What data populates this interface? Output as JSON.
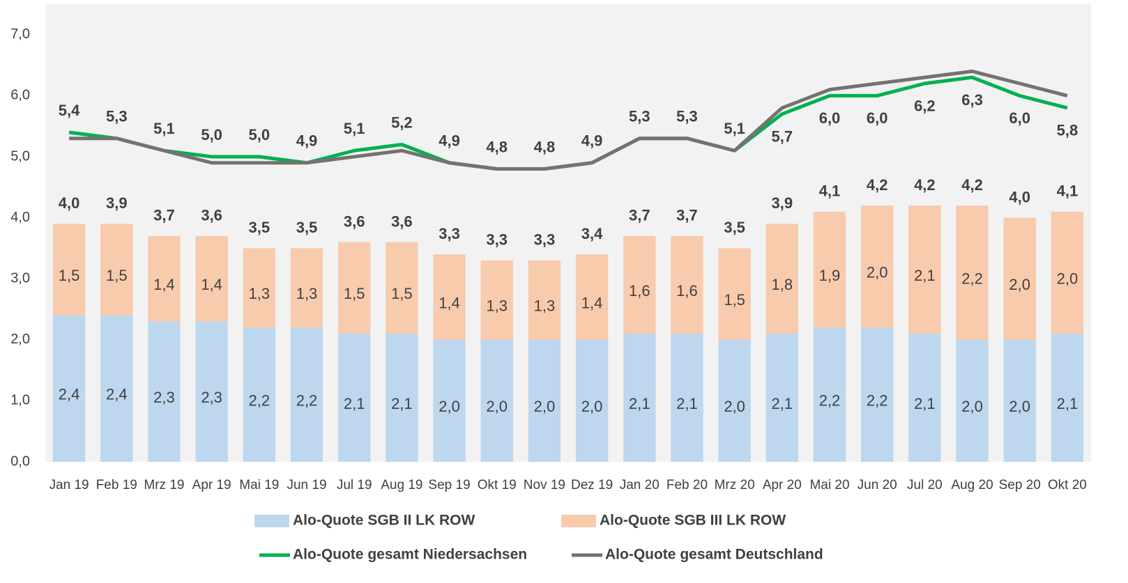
{
  "chart_data": {
    "type": "bar",
    "stacked": true,
    "categories": [
      "Jan 19",
      "Feb 19",
      "Mrz 19",
      "Apr 19",
      "Mai 19",
      "Jun 19",
      "Jul 19",
      "Aug 19",
      "Sep 19",
      "Okt 19",
      "Nov 19",
      "Dez 19",
      "Jan 20",
      "Feb 20",
      "Mrz 20",
      "Apr 20",
      "Mai 20",
      "Jun 20",
      "Jul 20",
      "Aug 20",
      "Sep 20",
      "Okt 20"
    ],
    "series": [
      {
        "name": "Alo-Quote SGB II LK ROW",
        "type": "bar",
        "color": "#bdd7ee",
        "values": [
          2.4,
          2.4,
          2.3,
          2.3,
          2.2,
          2.2,
          2.1,
          2.1,
          2.0,
          2.0,
          2.0,
          2.0,
          2.1,
          2.1,
          2.0,
          2.1,
          2.2,
          2.2,
          2.1,
          2.0,
          2.0,
          2.1
        ],
        "value_labels": [
          "2,4",
          "2,4",
          "2,3",
          "2,3",
          "2,2",
          "2,2",
          "2,1",
          "2,1",
          "2,0",
          "2,0",
          "2,0",
          "2,0",
          "2,1",
          "2,1",
          "2,0",
          "2,1",
          "2,2",
          "2,2",
          "2,1",
          "2,0",
          "2,0",
          "2,1"
        ]
      },
      {
        "name": "Alo-Quote SGB III LK ROW",
        "type": "bar",
        "color": "#f8cbad",
        "values": [
          1.5,
          1.5,
          1.4,
          1.4,
          1.3,
          1.3,
          1.5,
          1.5,
          1.4,
          1.3,
          1.3,
          1.4,
          1.6,
          1.6,
          1.5,
          1.8,
          1.9,
          2.0,
          2.1,
          2.2,
          2.0,
          2.0
        ],
        "value_labels": [
          "1,5",
          "1,5",
          "1,4",
          "1,4",
          "1,3",
          "1,3",
          "1,5",
          "1,5",
          "1,4",
          "1,3",
          "1,3",
          "1,4",
          "1,6",
          "1,6",
          "1,5",
          "1,8",
          "1,9",
          "2,0",
          "2,1",
          "2,2",
          "2,0",
          "2,0"
        ]
      },
      {
        "name": "Alo-Quote gesamt Niedersachsen",
        "type": "line",
        "color": "#00b050",
        "values": [
          5.4,
          5.3,
          5.1,
          5.0,
          5.0,
          4.9,
          5.1,
          5.2,
          4.9,
          4.8,
          4.8,
          4.9,
          5.3,
          5.3,
          5.1,
          5.7,
          6.0,
          6.0,
          6.2,
          6.3,
          6.0,
          5.8
        ],
        "value_labels": [
          "5,4",
          "5,3",
          "5,1",
          "5,0",
          "5,0",
          "4,9",
          "5,1",
          "5,2",
          "4,9",
          "4,8",
          "4,8",
          "4,9",
          "5,3",
          "5,3",
          "5,1",
          "5,7",
          "6,0",
          "6,0",
          "6,2",
          "6,3",
          "6,0",
          "5,8"
        ]
      },
      {
        "name": "Alo-Quote gesamt Deutschland",
        "type": "line",
        "color": "#767171",
        "values": [
          5.3,
          5.3,
          5.1,
          4.9,
          4.9,
          4.9,
          5.0,
          5.1,
          4.9,
          4.8,
          4.8,
          4.9,
          5.3,
          5.3,
          5.1,
          5.8,
          6.1,
          6.2,
          6.3,
          6.4,
          6.2,
          6.0
        ]
      }
    ],
    "totals": [
      4.0,
      3.9,
      3.7,
      3.6,
      3.5,
      3.5,
      3.6,
      3.6,
      3.3,
      3.3,
      3.3,
      3.4,
      3.7,
      3.7,
      3.5,
      3.9,
      4.1,
      4.2,
      4.2,
      4.2,
      4.0,
      4.1
    ],
    "total_labels": [
      "4,0",
      "3,9",
      "3,7",
      "3,6",
      "3,5",
      "3,5",
      "3,6",
      "3,6",
      "3,3",
      "3,3",
      "3,3",
      "3,4",
      "3,7",
      "3,7",
      "3,5",
      "3,9",
      "4,1",
      "4,2",
      "4,2",
      "4,2",
      "4,0",
      "4,1"
    ],
    "ylim": [
      0,
      7.5
    ],
    "yticks": [
      {
        "value": 0,
        "label": "0,0"
      },
      {
        "value": 1,
        "label": "1,0"
      },
      {
        "value": 2,
        "label": "2,0"
      },
      {
        "value": 3,
        "label": "3,0"
      },
      {
        "value": 4,
        "label": "4,0"
      },
      {
        "value": 5,
        "label": "5,0"
      },
      {
        "value": 6,
        "label": "6,0"
      },
      {
        "value": 7,
        "label": "7,0"
      }
    ],
    "grid": false
  }
}
